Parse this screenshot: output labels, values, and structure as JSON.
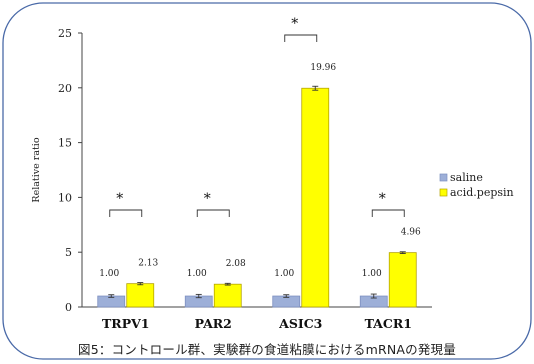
{
  "caption": "図5：コントロール群、実験群の食道粘膜におけるmRNAの発現量",
  "chart_data": {
    "type": "bar",
    "title": "",
    "xlabel": "",
    "ylabel": "Relative ratio",
    "ylim": [
      0,
      25
    ],
    "yticks": [
      "0",
      "5",
      "10",
      "15",
      "20",
      "25"
    ],
    "categories": [
      "TRPV1",
      "PAR2",
      "ASIC3",
      "TACR1"
    ],
    "series": [
      {
        "name": "saline",
        "color": "#9dafd8",
        "values": [
          1.0,
          1.0,
          1.0,
          1.0
        ],
        "errors": [
          0.12,
          0.15,
          0.12,
          0.18
        ],
        "labels": [
          "1.00",
          "1.00",
          "1.00",
          "1.00"
        ]
      },
      {
        "name": "acid.pepsin",
        "color": "#ffff00",
        "values": [
          2.13,
          2.08,
          19.96,
          4.96
        ],
        "errors": [
          0.1,
          0.08,
          0.18,
          0.08
        ],
        "labels": [
          "2.13",
          "2.08",
          "19.96",
          "4.96"
        ]
      }
    ],
    "significance": [
      "*",
      "*",
      "*",
      "*"
    ],
    "legend_position": "right",
    "grid": false
  }
}
